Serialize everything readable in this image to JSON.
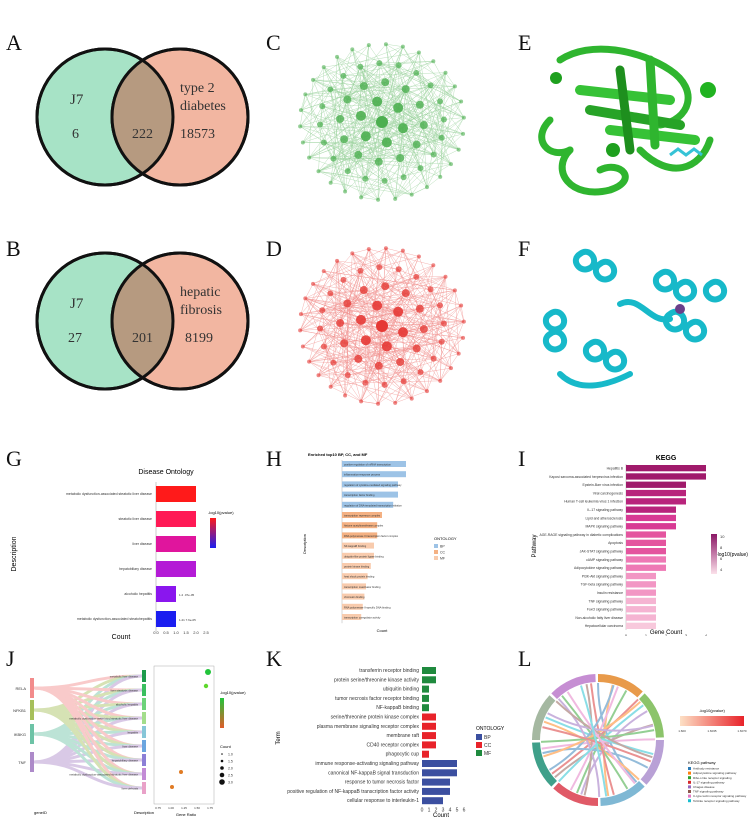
{
  "panels": {
    "A": {
      "letter": "A",
      "left_label": "J7",
      "right_label_line1": "type 2",
      "right_label_line2": "diabetes",
      "left_only": "6",
      "overlap": "222",
      "right_only": "18573"
    },
    "B": {
      "letter": "B",
      "left_label": "J7",
      "right_label_line1": "hepatic",
      "right_label_line2": "fibrosis",
      "left_only": "27",
      "overlap": "201",
      "right_only": "8199"
    },
    "C": {
      "letter": "C",
      "color": "#4caf50"
    },
    "D": {
      "letter": "D",
      "color": "#e53935"
    },
    "E": {
      "letter": "E",
      "color": "#2fb52f"
    },
    "F": {
      "letter": "F",
      "color": "#17b9c9"
    },
    "G": {
      "letter": "G"
    },
    "H": {
      "letter": "H"
    },
    "I": {
      "letter": "I"
    },
    "J": {
      "letter": "J"
    },
    "K": {
      "letter": "K"
    },
    "L": {
      "letter": "L"
    }
  },
  "chart_data": [
    {
      "panel": "G",
      "type": "bar",
      "title": "Disease Ontology",
      "xlabel": "Count",
      "ylabel": "Description",
      "categories": [
        "metabolic dysfunction-associated steatotic liver disease",
        "steatotic liver disease",
        "liver disease",
        "hepatobiliary disease",
        "alcoholic hepatitis",
        "metabolic dysfunction-associated steatohepatitis"
      ],
      "values": [
        2,
        2,
        2,
        2,
        1,
        1
      ],
      "xticks": [
        "0.0",
        "0.5",
        "1.0",
        "1.5",
        "2.0",
        "2.5"
      ],
      "colors": [
        "#ff1a1a",
        "#ff1a55",
        "#e0159d",
        "#b41bd6",
        "#8a16ee",
        "#1b1ef0"
      ],
      "bar_labels": [
        "",
        "",
        "",
        "",
        "1.2 .07e-05",
        "1.21 7.6e-05"
      ],
      "legend_title": "-log10(pvalue)"
    },
    {
      "panel": "H",
      "type": "bar",
      "title": "Enriched top10 BP, CC, and MF",
      "xlabel": "Count",
      "ylabel": "Description",
      "categories": [
        "positive regulation of mRNA transcription",
        "inflammation-response process",
        "regulation of cytokine-mediated signaling pathway",
        "transcription factor binding",
        "regulation of DNA-templated transcription initiation",
        "transcription repressor complex",
        "histone acetyltransferase complex",
        "RNA polymerase II transcription factor complex",
        "NF-kappaB binding",
        "ubiquitin-like protein ligase binding",
        "protein kinase binding",
        "heat shock protein binding",
        "transcription coactivator binding",
        "chromatin binding",
        "RNA polymerase II-specific DNA-binding",
        "transcription coregulator activity"
      ],
      "values": [
        4,
        4,
        3.5,
        3.5,
        3.2,
        2.5,
        2.2,
        2.2,
        2,
        2,
        1.8,
        1.6,
        1.5,
        1.4,
        1.3,
        1.2
      ],
      "ontology": [
        "BP",
        "BP",
        "BP",
        "BP",
        "BP",
        "CC",
        "CC",
        "CC",
        "MF",
        "MF",
        "MF",
        "MF",
        "MF",
        "MF",
        "MF",
        "MF"
      ],
      "legend_title": "ONTOLOGY",
      "legend_items": [
        "BP",
        "CC",
        "MF"
      ],
      "colors": {
        "BP": "#9dc3e6",
        "CC": "#f4b183",
        "MF": "#f8cbad"
      }
    },
    {
      "panel": "I",
      "type": "bar",
      "title": "KEGG",
      "xlabel": "Gene Count",
      "ylabel": "Pathway",
      "categories": [
        "Hepatitis B",
        "Kaposi sarcoma-associated herpesvirus infection",
        "Epstein-Barr virus infection",
        "Viral carcinogenesis",
        "Human T-cell leukemia virus 1 infection",
        "IL-17 signaling pathway",
        "Lipid and atherosclerosis",
        "MAPK signaling pathway",
        "AGE-RAGE signaling pathway in diabetic complications",
        "Apoptosis",
        "JAK-STAT signaling pathway",
        "cAMP signaling pathway",
        "Adipocytokine signaling pathway",
        "PI3K-Akt signaling pathway",
        "TGF-beta signaling pathway",
        "Insulin resistance",
        "TNF signaling pathway",
        "FoxO signaling pathway",
        "Non-alcoholic fatty liver disease",
        "Hepatocellular carcinoma"
      ],
      "values": [
        4,
        4,
        3,
        3,
        3,
        2.5,
        2.5,
        2.5,
        2,
        2,
        2,
        2,
        2,
        1.5,
        1.5,
        1.5,
        1.5,
        1.5,
        1.5,
        1.5
      ],
      "xticks": [
        "0",
        "1",
        "2",
        "3",
        "4"
      ],
      "legend_title": "-log10(pvalue)",
      "legend_ticks": [
        "10",
        "8",
        "6",
        "4"
      ]
    },
    {
      "panel": "K",
      "type": "bar",
      "xlabel": "Count",
      "ylabel": "Term",
      "categories": [
        "transferrin receptor binding",
        "protein serine/threonine kinase activity",
        "ubiquitin binding",
        "tumor necrosis factor receptor binding",
        "NF-kappaB binding",
        "serine/threonine protein kinase complex",
        "plasma membrane signaling receptor complex",
        "membrane raft",
        "CD40 receptor complex",
        "phagocytic cup",
        "immune response-activating signaling pathway",
        "canonical NF-kappaB signal transduction",
        "response to tumor necrosis factor",
        "positive regulation of NF-kappaB transcription factor activity",
        "cellular response to interleukin-1"
      ],
      "values": [
        2,
        2,
        1,
        1,
        1,
        2,
        2,
        2,
        2,
        1,
        5,
        5,
        4,
        4,
        3
      ],
      "ontology": [
        "MF",
        "MF",
        "MF",
        "MF",
        "MF",
        "CC",
        "CC",
        "CC",
        "CC",
        "CC",
        "BP",
        "BP",
        "BP",
        "BP",
        "BP"
      ],
      "xticks": [
        "0",
        "1",
        "2",
        "3",
        "4",
        "5",
        "6"
      ],
      "legend_title": "ONTOLOGY",
      "legend_items": [
        "BP",
        "CC",
        "MF"
      ],
      "colors": {
        "BP": "#3b4fa0",
        "CC": "#e8232a",
        "MF": "#1f8a3e"
      }
    },
    {
      "panel": "J",
      "type": "scatter",
      "genes": [
        "RELA",
        "NFKB1",
        "IKBKG",
        "TNF"
      ],
      "terms": [
        "metabolic liver disease",
        "liver steatosis disease",
        "alcoholic hepatitis",
        "metabolic dysfunction-associated steatotic liver disease",
        "hepatitis",
        "liver disease",
        "hepatobiliary disease",
        "metabolic dysfunction-associated steatotic liver disease",
        "liver cirrhosis"
      ],
      "xlabel": "Gene Ratio",
      "xticks": [
        "0.75",
        "1.00",
        "1.25",
        "1.50",
        "1.75"
      ],
      "legend_title": "-log10(pvalue)",
      "size_title": "Count",
      "size_ticks": [
        "1.0",
        "1.5",
        "2.0",
        "2.5",
        "3.0"
      ],
      "bottom_labels": [
        "geneID",
        "Description"
      ]
    },
    {
      "panel": "L",
      "type": "other",
      "legend_title": "-log10(pvalue)",
      "legend_ticks": [
        "1.600",
        "1.6035",
        "1.6070"
      ],
      "pathway_legend_title": "KEGG pathway",
      "pathways": [
        "Antibody resistance",
        "Adipocytokine signaling pathway",
        "Ribo-s like receptor signaling",
        "IL-17 signaling pathway",
        "Chagas disease",
        "TNF signaling pathway",
        "C-type lectin receptor signaling pathway",
        "Toll-like receptor signaling pathway"
      ],
      "pathway_colors": [
        "#2c7bb6",
        "#ff7f0e",
        "#2ca02c",
        "#d62728",
        "#9467bd",
        "#8c564b",
        "#e377c2",
        "#17becf"
      ]
    }
  ]
}
